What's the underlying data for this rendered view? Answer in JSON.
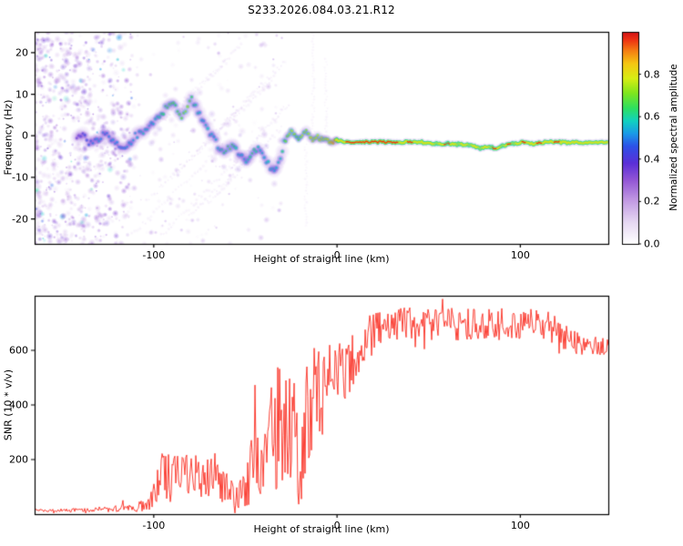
{
  "figure": {
    "title": "S233.2026.084.03.21.R12"
  },
  "colors": {
    "snr_line": "#f92c20",
    "axis": "#000000",
    "background": "#ffffff"
  },
  "chart_data": [
    {
      "type": "heatmap",
      "panel": "frequency-spectrogram",
      "xlabel": "Height of straight line (km)",
      "ylabel": "Frequency (Hz)",
      "xlim": [
        -165,
        148
      ],
      "ylim": [
        -26,
        25
      ],
      "xticks": [
        -100,
        0,
        100
      ],
      "yticks": [
        20,
        10,
        0,
        -10,
        -20
      ],
      "grid": false,
      "colorbar": {
        "label": "Normalized spectral amplitude",
        "range": [
          0,
          1
        ],
        "ticks": [
          {
            "v": 0.0,
            "label": "0.0"
          },
          {
            "v": 0.2,
            "label": "0.2"
          },
          {
            "v": 0.4,
            "label": "0.4"
          },
          {
            "v": 0.6,
            "label": "0.6"
          },
          {
            "v": 0.8,
            "label": "0.8"
          }
        ],
        "stops": [
          [
            0.0,
            "#ffffff"
          ],
          [
            0.1,
            "#e7d9f3"
          ],
          [
            0.2,
            "#c49de4"
          ],
          [
            0.3,
            "#9356d6"
          ],
          [
            0.38,
            "#5b2fd8"
          ],
          [
            0.46,
            "#2d51e8"
          ],
          [
            0.52,
            "#1a9ae8"
          ],
          [
            0.58,
            "#12d2c0"
          ],
          [
            0.64,
            "#2ee060"
          ],
          [
            0.71,
            "#7ee61e"
          ],
          [
            0.78,
            "#d8ee14"
          ],
          [
            0.85,
            "#f6c713"
          ],
          [
            0.91,
            "#f57f12"
          ],
          [
            0.96,
            "#ee3413"
          ],
          [
            1.0,
            "#d31216"
          ]
        ]
      },
      "trace": {
        "x": [
          -142,
          -138,
          -134,
          -130,
          -126,
          -122,
          -118,
          -114,
          -110,
          -106,
          -102,
          -98,
          -94,
          -91,
          -88,
          -85,
          -82,
          -79,
          -76,
          -73,
          -70,
          -67,
          -64,
          -61,
          -58,
          -55,
          -52,
          -49,
          -46,
          -43,
          -40,
          -37,
          -34,
          -31,
          -29,
          -27,
          -25,
          -23,
          -21,
          -19,
          -17,
          -15,
          -13,
          -11,
          -9,
          -7,
          -5,
          -3,
          0,
          5,
          10,
          15,
          20,
          25,
          30,
          35,
          40,
          45,
          50,
          55,
          60,
          65,
          70,
          75,
          78,
          82,
          86,
          90,
          94,
          98,
          102,
          106,
          110,
          115,
          120,
          125,
          130,
          135,
          140,
          145,
          148
        ],
        "freq": [
          -1,
          0,
          -2,
          -1,
          1,
          -1,
          -3,
          -2,
          0,
          1,
          2,
          4,
          6,
          8,
          7,
          5,
          7,
          9,
          6,
          3,
          1,
          -1,
          -3,
          -4,
          -2,
          -3,
          -5,
          -6,
          -4,
          -3,
          -5,
          -7,
          -8,
          -5,
          -2,
          0,
          1,
          0,
          -1,
          0,
          1,
          0,
          -1,
          0,
          -1,
          -0.5,
          -1,
          -1.5,
          -1,
          -1.5,
          -1.5,
          -1.5,
          -1.5,
          -1.5,
          -1.5,
          -1.5,
          -1.5,
          -1.5,
          -1.8,
          -2,
          -1.8,
          -2,
          -2.2,
          -2.5,
          -3,
          -2.5,
          -3,
          -2.5,
          -2,
          -1.8,
          -1.5,
          -2,
          -1.8,
          -1.5,
          -1.5,
          -1.6,
          -1.5,
          -1.6,
          -1.5,
          -1.5,
          -1.5
        ],
        "amp": [
          0.35,
          0.4,
          0.45,
          0.5,
          0.45,
          0.5,
          0.45,
          0.5,
          0.5,
          0.55,
          0.5,
          0.55,
          0.6,
          0.65,
          0.6,
          0.65,
          0.7,
          0.6,
          0.55,
          0.5,
          0.55,
          0.5,
          0.55,
          0.6,
          0.65,
          0.55,
          0.5,
          0.55,
          0.6,
          0.55,
          0.5,
          0.55,
          0.5,
          0.55,
          0.6,
          0.65,
          0.7,
          0.65,
          0.6,
          0.7,
          0.65,
          0.7,
          0.75,
          0.7,
          0.75,
          0.7,
          0.75,
          0.8,
          0.85,
          0.95,
          1.0,
          0.95,
          1.0,
          0.95,
          1.0,
          0.9,
          0.95,
          0.9,
          0.85,
          0.9,
          0.95,
          0.9,
          0.85,
          0.9,
          0.85,
          0.9,
          0.95,
          0.9,
          0.95,
          0.9,
          0.95,
          0.9,
          0.95,
          0.9,
          0.95,
          0.9,
          0.9,
          0.85,
          0.9,
          0.85,
          0.85
        ]
      },
      "noise": {
        "dense": {
          "x": [
            -168,
            -112
          ],
          "f": [
            -26,
            25
          ],
          "count": 620
        },
        "sparse": {
          "x": [
            -114,
            -30
          ],
          "f": [
            -26,
            25
          ],
          "count": 170
        },
        "clusters": 55
      },
      "streaks": [
        [
          -112,
          -24,
          -62,
          -2
        ],
        [
          -104,
          -16,
          -55,
          6
        ],
        [
          -96,
          -24,
          -50,
          -4
        ],
        [
          -90,
          -10,
          -45,
          10
        ],
        [
          -82,
          -20,
          -40,
          -2
        ],
        [
          -76,
          -4,
          -34,
          14
        ],
        [
          -70,
          -16,
          -30,
          2
        ],
        [
          -64,
          2,
          -28,
          18
        ],
        [
          -58,
          -8,
          -26,
          8
        ],
        [
          -100,
          2,
          -60,
          18
        ],
        [
          -88,
          6,
          -52,
          22
        ]
      ],
      "vstreaks": [
        [
          -13,
          1,
          25
        ],
        [
          -6,
          1,
          19
        ],
        [
          -17,
          -2,
          -22
        ]
      ]
    },
    {
      "type": "line",
      "panel": "snr",
      "xlabel": "Height of straight line (km)",
      "ylabel": "SNR (10 * v/v)",
      "xlim": [
        -165,
        148
      ],
      "ylim": [
        0,
        800
      ],
      "xticks": [
        -100,
        0,
        100
      ],
      "yticks": [
        200,
        400,
        600
      ],
      "grid": false,
      "series": [
        {
          "name": "SNR",
          "color": "#f92c20",
          "x": [
            -165,
            -150,
            -135,
            -120,
            -110,
            -103,
            -99,
            -95,
            -90,
            -85,
            -80,
            -75,
            -70,
            -65,
            -60,
            -55,
            -50,
            -46,
            -42,
            -38,
            -34,
            -30,
            -26,
            -23,
            -20,
            -17,
            -14,
            -11,
            -8,
            -5,
            -2,
            2,
            6,
            10,
            15,
            20,
            25,
            30,
            40,
            50,
            60,
            70,
            80,
            90,
            100,
            108,
            115,
            120,
            126,
            132,
            140,
            148
          ],
          "mean": [
            13,
            14,
            16,
            20,
            25,
            35,
            120,
            140,
            150,
            140,
            150,
            130,
            150,
            120,
            90,
            70,
            110,
            170,
            200,
            260,
            300,
            340,
            380,
            300,
            150,
            320,
            420,
            460,
            470,
            480,
            500,
            540,
            560,
            580,
            620,
            660,
            680,
            690,
            700,
            695,
            700,
            695,
            700,
            695,
            700,
            695,
            690,
            670,
            640,
            625,
            618,
            612
          ],
          "spread": [
            5,
            6,
            8,
            12,
            15,
            25,
            90,
            90,
            90,
            80,
            90,
            80,
            90,
            70,
            60,
            50,
            90,
            130,
            160,
            200,
            220,
            240,
            240,
            260,
            120,
            220,
            200,
            180,
            200,
            180,
            160,
            140,
            130,
            120,
            100,
            80,
            70,
            60,
            60,
            60,
            60,
            60,
            60,
            60,
            60,
            55,
            55,
            50,
            45,
            40,
            35,
            30
          ]
        }
      ]
    }
  ]
}
